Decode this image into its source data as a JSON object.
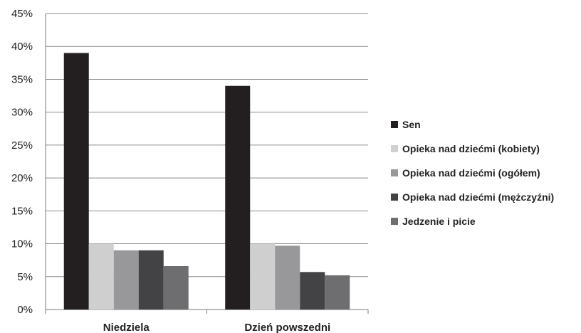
{
  "chart_data": {
    "type": "bar",
    "title": "",
    "xlabel": "",
    "ylabel": "",
    "categories": [
      "Niedziela",
      "Dzień powszedni"
    ],
    "ylim": [
      0,
      45
    ],
    "yticks": [
      "0%",
      "5%",
      "10%",
      "15%",
      "20%",
      "25%",
      "30%",
      "35%",
      "40%",
      "45%"
    ],
    "grid": true,
    "legend_position": "right",
    "series": [
      {
        "name": "Sen",
        "color": "#231f20",
        "values": [
          39,
          34
        ]
      },
      {
        "name": "Opieka nad dziećmi (kobiety)",
        "color": "#cfcfd0",
        "values": [
          10,
          10
        ]
      },
      {
        "name": "Opieka nad dziećmi (ogółem)",
        "color": "#98989a",
        "values": [
          9,
          9.7
        ]
      },
      {
        "name": "Opieka nad dziećmi (mężczyźni)",
        "color": "#434244",
        "values": [
          9,
          5.7
        ]
      },
      {
        "name": "Jedzenie i picie",
        "color": "#6e6e70",
        "values": [
          6.6,
          5.2
        ]
      }
    ]
  }
}
